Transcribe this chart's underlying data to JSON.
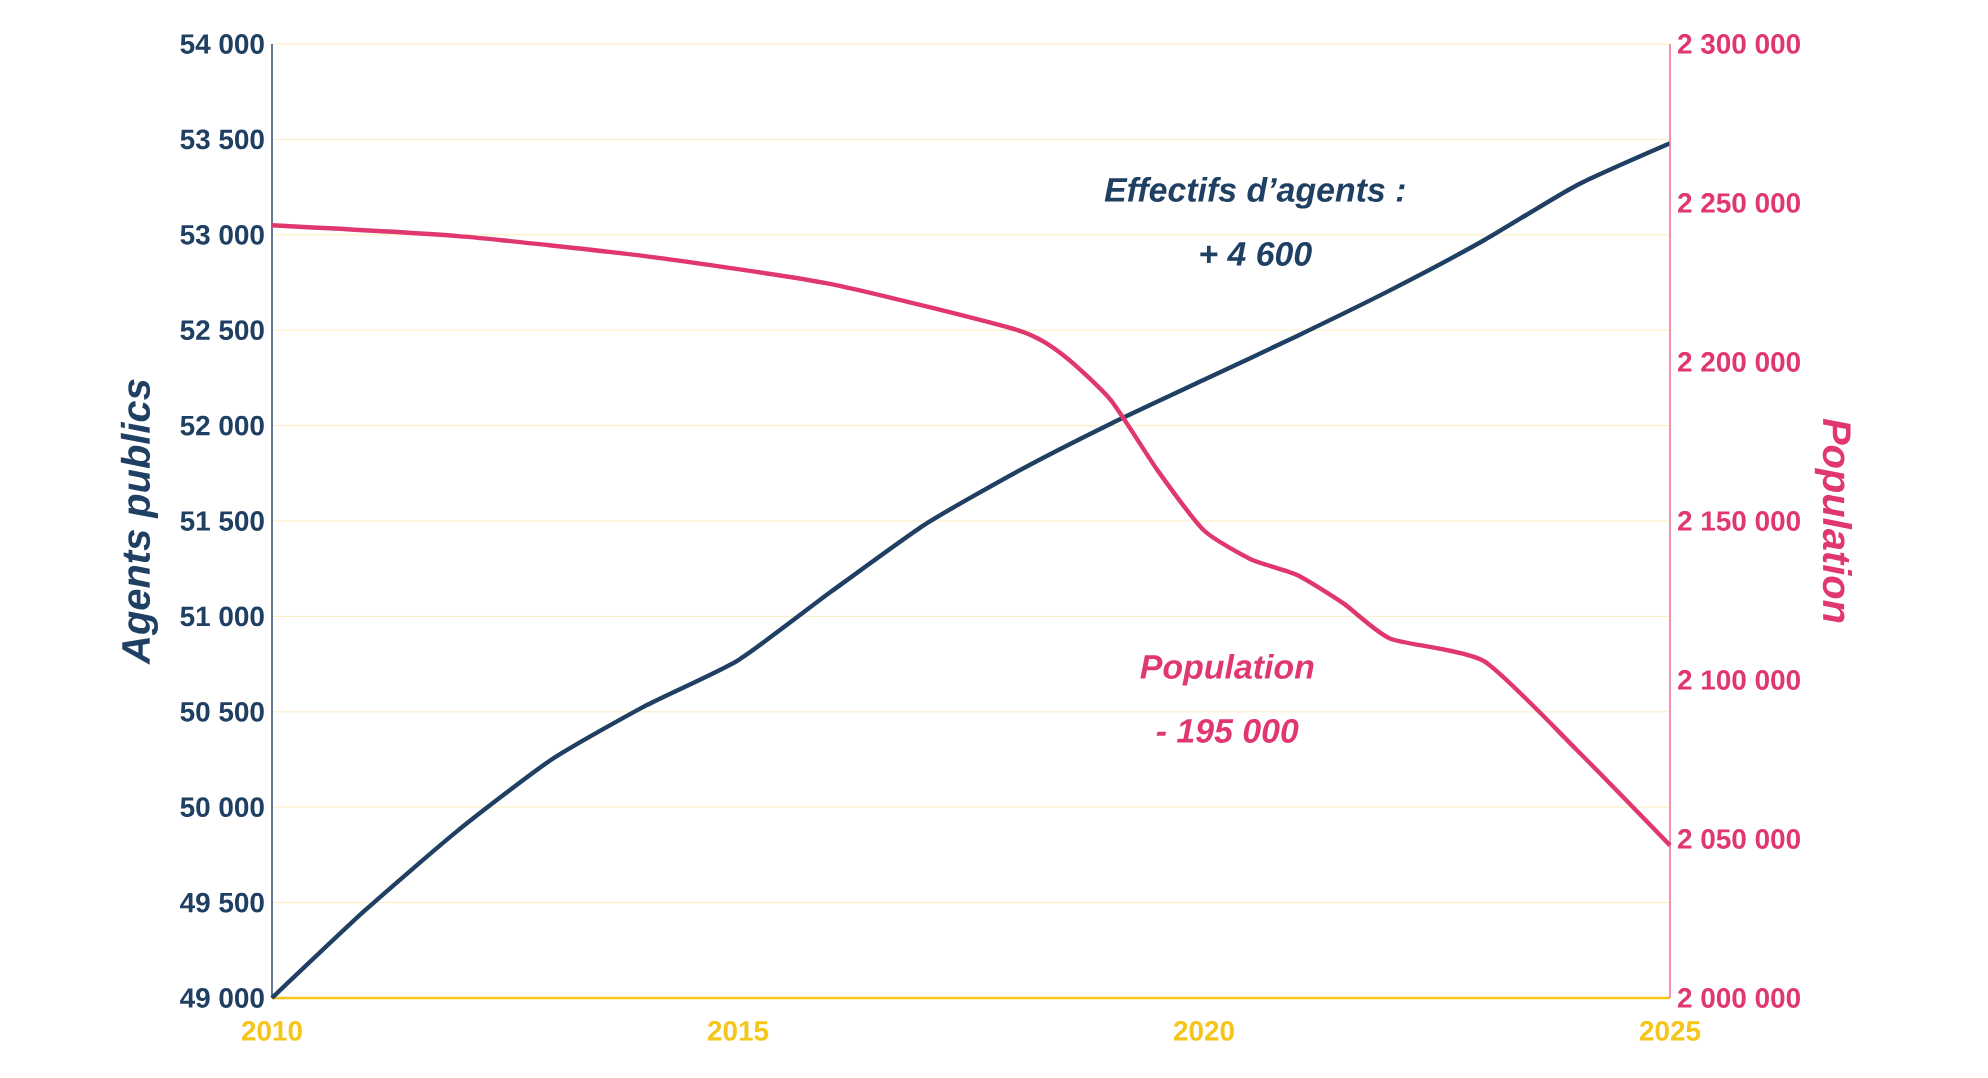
{
  "chart_data": {
    "type": "line",
    "ylabel": "Agents publics",
    "y2label": "Population",
    "annotations": [
      "Effectifs d’agents :",
      "+ 4 600",
      "Population",
      "- 195 000"
    ],
    "series": [
      {
        "color": "#1f3f63",
        "x": [
          2010,
          2011,
          2012,
          2013,
          2014,
          2015,
          2016,
          2017,
          2018,
          2019,
          2020,
          2021,
          2022,
          2023,
          2024,
          2025
        ],
        "values": [
          49000,
          49460,
          49880,
          50250,
          50530,
          50770,
          51130,
          51480,
          51760,
          52010,
          52240,
          52470,
          52710,
          52970,
          53260,
          53480
        ]
      },
      {
        "color": "#e0386e",
        "axis": "y2",
        "x": [
          2010,
          2012,
          2014,
          2016,
          2018,
          2018.5,
          2019,
          2019.5,
          2020,
          2020.5,
          2021,
          2021.5,
          2022,
          2023,
          2024,
          2025
        ],
        "values": [
          2243000,
          2239600,
          2233300,
          2224500,
          2210000,
          2201900,
          2188000,
          2166000,
          2147000,
          2138000,
          2133000,
          2124000,
          2113000,
          2106000,
          2078000,
          2048000
        ]
      }
    ],
    "xlim": [
      2010,
      2025
    ],
    "xticks": [
      2010,
      2015,
      2020,
      2025
    ],
    "ylim": [
      49000,
      54000
    ],
    "yticks": [
      {
        "value": 49000,
        "label": "49 000"
      },
      {
        "value": 49500,
        "label": "49 500"
      },
      {
        "value": 50000,
        "label": "50 000"
      },
      {
        "value": 50500,
        "label": "50 500"
      },
      {
        "value": 51000,
        "label": "51 000"
      },
      {
        "value": 51500,
        "label": "51 500"
      },
      {
        "value": 52000,
        "label": "52 000"
      },
      {
        "value": 52500,
        "label": "52 500"
      },
      {
        "value": 53000,
        "label": "53 000"
      },
      {
        "value": 53500,
        "label": "53 500"
      },
      {
        "value": 54000,
        "label": "54 000"
      }
    ],
    "y2lim": [
      2000000,
      2300000
    ],
    "y2ticks": [
      {
        "value": 2000000,
        "label": "2 000 000"
      },
      {
        "value": 2050000,
        "label": "2 050 000"
      },
      {
        "value": 2100000,
        "label": "2 100 000"
      },
      {
        "value": 2150000,
        "label": "2 150 000"
      },
      {
        "value": 2200000,
        "label": "2 200 000"
      },
      {
        "value": 2250000,
        "label": "2 250 000"
      },
      {
        "value": 2300000,
        "label": "2 300 000"
      }
    ],
    "grid": "y",
    "marker": "none",
    "line_style": "solid"
  }
}
